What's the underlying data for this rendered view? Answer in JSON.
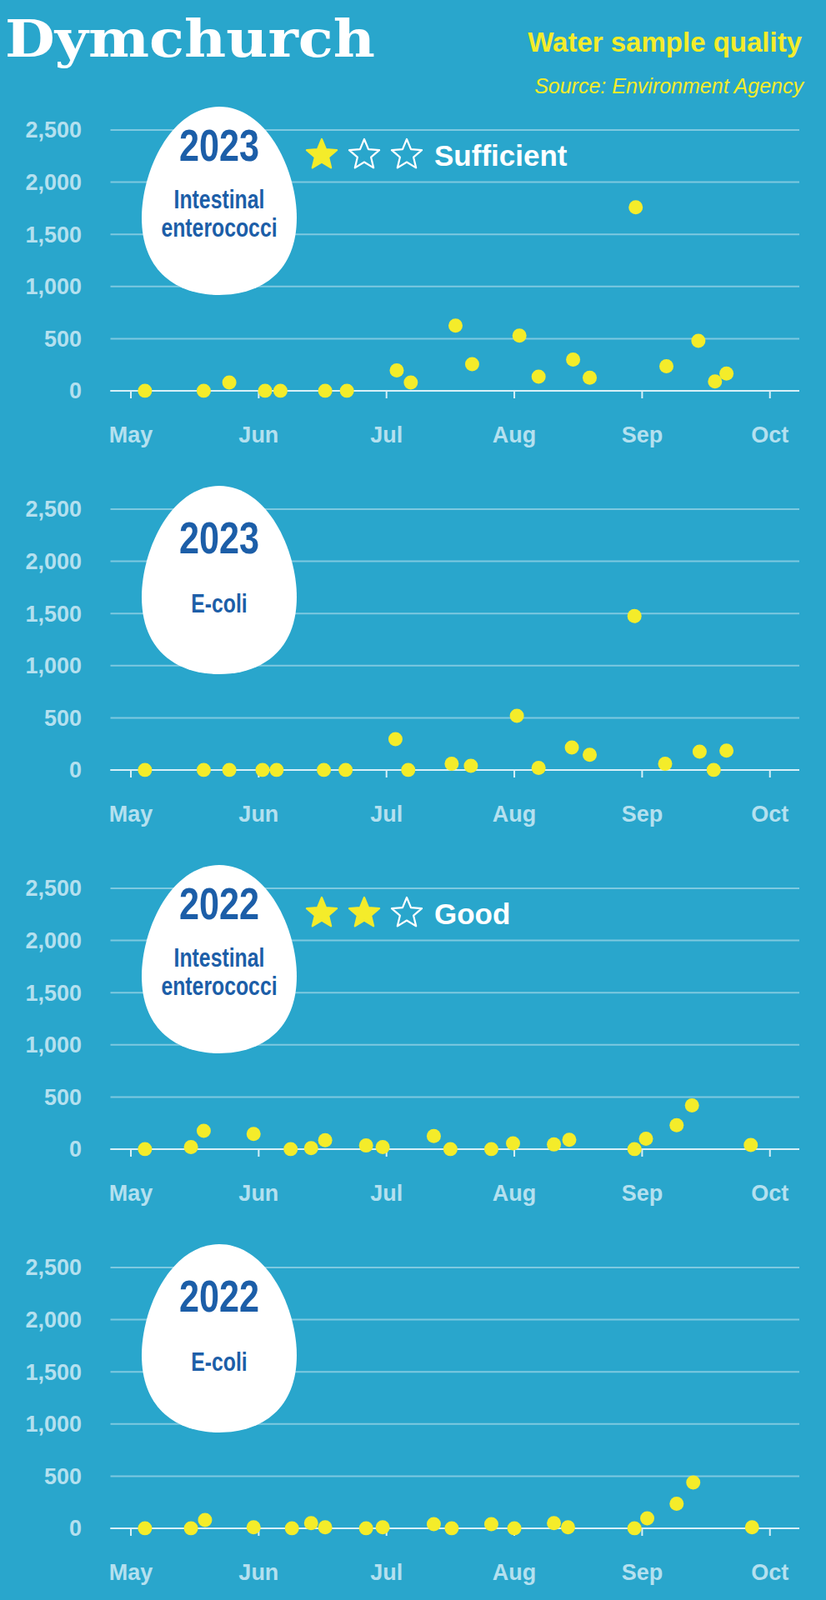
{
  "title": "Dymchurch",
  "subtitle": "Water sample quality",
  "source": "Source: Environment Agency",
  "chart_data": [
    {
      "type": "scatter",
      "title": "2023",
      "subtitle": "Intestinal enterococci",
      "rating_label": "Sufficient",
      "rating": 1,
      "rating_max": 3,
      "x": [
        5.11,
        5.57,
        5.77,
        6.05,
        6.17,
        6.52,
        6.69,
        7.08,
        7.19,
        7.54,
        7.67,
        8.04,
        8.19,
        8.46,
        8.59,
        8.95,
        9.19,
        9.44,
        9.57,
        9.66
      ],
      "values": [
        0,
        0,
        80,
        0,
        0,
        0,
        0,
        195,
        80,
        625,
        255,
        530,
        135,
        300,
        125,
        1760,
        235,
        480,
        90,
        165
      ],
      "color": "#f4ec2a",
      "marker": "circle",
      "xlim": [
        4.84,
        10.23
      ],
      "xticks": [
        {
          "value": 5,
          "label": "May"
        },
        {
          "value": 6,
          "label": "Jun"
        },
        {
          "value": 7,
          "label": "Jul"
        },
        {
          "value": 8,
          "label": "Aug"
        },
        {
          "value": 9,
          "label": "Sep"
        },
        {
          "value": 10,
          "label": "Oct"
        }
      ],
      "ylim": [
        0,
        2500
      ],
      "yticks": [
        0,
        500,
        {
          "value": 1000,
          "label": "1,000"
        },
        {
          "value": 1500,
          "label": "1,500"
        },
        {
          "value": 2000,
          "label": "2,000"
        },
        {
          "value": 2500,
          "label": "2,500"
        }
      ],
      "grid": true
    },
    {
      "type": "scatter",
      "title": "2023",
      "subtitle": "E-coli",
      "x": [
        5.11,
        5.57,
        5.77,
        6.03,
        6.14,
        6.51,
        6.68,
        7.07,
        7.17,
        7.51,
        7.66,
        8.02,
        8.19,
        8.45,
        8.59,
        8.94,
        9.18,
        9.45,
        9.56,
        9.66
      ],
      "values": [
        0,
        0,
        0,
        0,
        0,
        0,
        0,
        295,
        0,
        60,
        40,
        520,
        20,
        215,
        145,
        1475,
        60,
        175,
        0,
        185
      ],
      "color": "#f4ec2a",
      "marker": "circle",
      "xlim": [
        4.84,
        10.23
      ],
      "xticks": [
        {
          "value": 5,
          "label": "May"
        },
        {
          "value": 6,
          "label": "Jun"
        },
        {
          "value": 7,
          "label": "Jul"
        },
        {
          "value": 8,
          "label": "Aug"
        },
        {
          "value": 9,
          "label": "Sep"
        },
        {
          "value": 10,
          "label": "Oct"
        }
      ],
      "ylim": [
        0,
        2500
      ],
      "yticks": [
        0,
        500,
        {
          "value": 1000,
          "label": "1,000"
        },
        {
          "value": 1500,
          "label": "1,500"
        },
        {
          "value": 2000,
          "label": "2,000"
        },
        {
          "value": 2500,
          "label": "2,500"
        }
      ],
      "grid": true
    },
    {
      "type": "scatter",
      "title": "2022",
      "subtitle": "Intestinal enterococci",
      "rating_label": "Good",
      "rating": 2,
      "rating_max": 3,
      "x": [
        5.11,
        5.47,
        5.57,
        5.96,
        6.25,
        6.41,
        6.52,
        6.84,
        6.97,
        7.37,
        7.5,
        7.82,
        7.99,
        8.31,
        8.43,
        8.94,
        9.03,
        9.27,
        9.39,
        9.85
      ],
      "values": [
        0,
        20,
        175,
        145,
        0,
        10,
        85,
        35,
        20,
        125,
        0,
        0,
        55,
        45,
        90,
        0,
        100,
        230,
        420,
        40
      ],
      "color": "#f4ec2a",
      "marker": "circle",
      "xlim": [
        4.84,
        10.23
      ],
      "xticks": [
        {
          "value": 5,
          "label": "May"
        },
        {
          "value": 6,
          "label": "Jun"
        },
        {
          "value": 7,
          "label": "Jul"
        },
        {
          "value": 8,
          "label": "Aug"
        },
        {
          "value": 9,
          "label": "Sep"
        },
        {
          "value": 10,
          "label": "Oct"
        }
      ],
      "ylim": [
        0,
        2500
      ],
      "yticks": [
        0,
        500,
        {
          "value": 1000,
          "label": "1,000"
        },
        {
          "value": 1500,
          "label": "1,500"
        },
        {
          "value": 2000,
          "label": "2,000"
        },
        {
          "value": 2500,
          "label": "2,500"
        }
      ],
      "grid": true
    },
    {
      "type": "scatter",
      "title": "2022",
      "subtitle": "E-coli",
      "x": [
        5.11,
        5.47,
        5.58,
        5.96,
        6.26,
        6.41,
        6.52,
        6.84,
        6.97,
        7.37,
        7.51,
        7.82,
        8.0,
        8.31,
        8.42,
        8.94,
        9.04,
        9.27,
        9.4,
        9.86
      ],
      "values": [
        0,
        0,
        80,
        10,
        0,
        50,
        10,
        0,
        10,
        40,
        0,
        40,
        0,
        50,
        10,
        0,
        95,
        235,
        440,
        10
      ],
      "color": "#f4ec2a",
      "marker": "circle",
      "xlim": [
        4.84,
        10.23
      ],
      "xticks": [
        {
          "value": 5,
          "label": "May"
        },
        {
          "value": 6,
          "label": "Jun"
        },
        {
          "value": 7,
          "label": "Jul"
        },
        {
          "value": 8,
          "label": "Aug"
        },
        {
          "value": 9,
          "label": "Sep"
        },
        {
          "value": 10,
          "label": "Oct"
        }
      ],
      "ylim": [
        0,
        2500
      ],
      "yticks": [
        0,
        500,
        {
          "value": 1000,
          "label": "1,000"
        },
        {
          "value": 1500,
          "label": "1,500"
        },
        {
          "value": 2000,
          "label": "2,000"
        },
        {
          "value": 2500,
          "label": "2,500"
        }
      ],
      "grid": true
    }
  ]
}
